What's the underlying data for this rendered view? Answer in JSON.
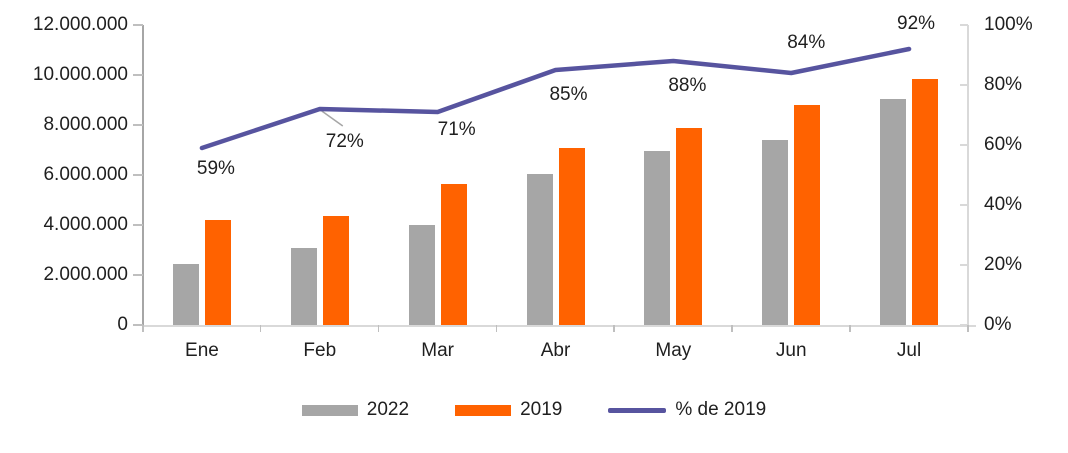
{
  "chart_data": {
    "type": "combo",
    "title": "",
    "categories": [
      "Ene",
      "Feb",
      "Mar",
      "Abr",
      "May",
      "Jun",
      "Jul"
    ],
    "series": [
      {
        "name": "2022",
        "type": "bar",
        "axis": "left",
        "color": "#a6a6a6",
        "values": [
          2450000,
          3100000,
          4000000,
          6050000,
          6950000,
          7400000,
          9050000
        ]
      },
      {
        "name": "2019",
        "type": "bar",
        "axis": "left",
        "color": "#ff6200",
        "values": [
          4200000,
          4350000,
          5650000,
          7100000,
          7900000,
          8800000,
          9850000
        ]
      },
      {
        "name": "% de 2019",
        "type": "line",
        "axis": "right",
        "color": "#57549f",
        "values": [
          59,
          72,
          71,
          85,
          88,
          84,
          92
        ],
        "point_labels": [
          "59%",
          "72%",
          "71%",
          "85%",
          "88%",
          "84%",
          "92%"
        ]
      }
    ],
    "left_axis": {
      "min": 0,
      "max": 12000000,
      "tick_labels": [
        "12.000.000",
        "10.000.000",
        "8.000.000",
        "6.000.000",
        "4.000.000",
        "2.000.000",
        "0"
      ]
    },
    "right_axis": {
      "min": 0,
      "max": 100,
      "tick_labels": [
        "100%",
        "80%",
        "60%",
        "40%",
        "20%",
        "0%"
      ]
    },
    "legend": {
      "position": "bottom",
      "entries": [
        "2022",
        "2019",
        "% de 2019"
      ]
    },
    "grid": false,
    "leader_line": {
      "series": "% de 2019",
      "category": "Feb",
      "color": "#a6a6a6"
    }
  }
}
